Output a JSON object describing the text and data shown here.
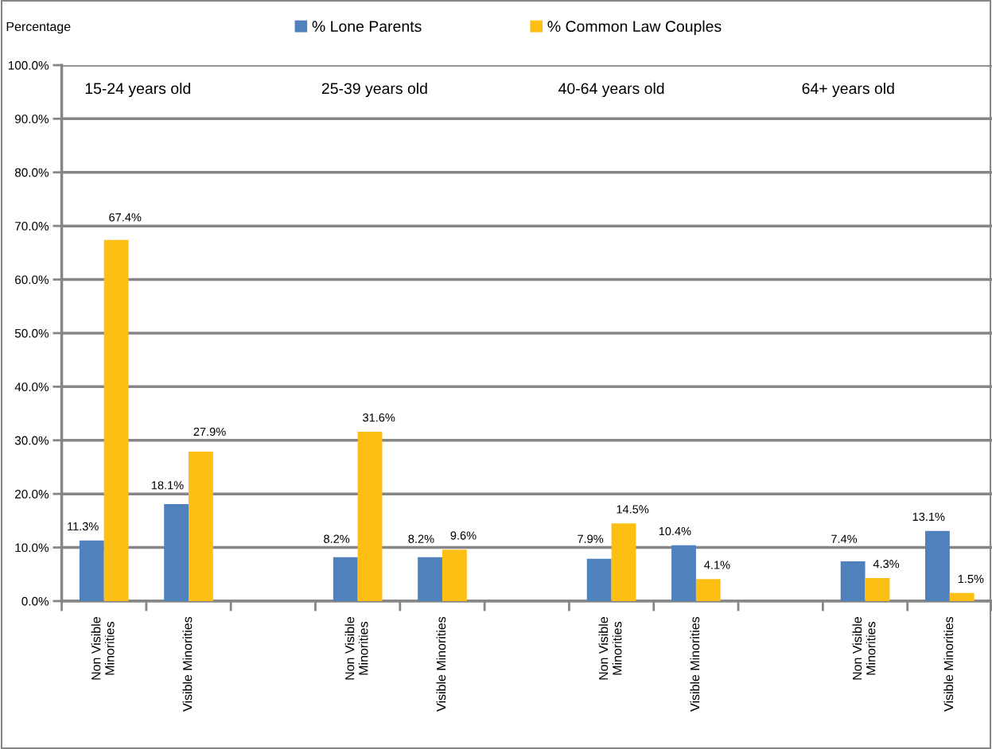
{
  "chart_data": {
    "type": "bar",
    "ylabel": "Percentage",
    "annotations": [
      "15-24 years old",
      "25-39 years old",
      "40-64 years old",
      "64+ years old"
    ],
    "categories": [
      "Non Visible\nMinorities",
      "Visible Minorities",
      null,
      "Non Visible\nMinorities",
      "Visible Minorities",
      null,
      "Non Visible\nMinorities",
      "Visible Minorities",
      null,
      "Non Visible\nMinorities",
      "Visible Minorities"
    ],
    "series": [
      {
        "name": "% Lone Parents",
        "color": "#4f81bd",
        "values": [
          11.3,
          18.1,
          null,
          8.2,
          8.2,
          null,
          7.9,
          10.4,
          null,
          7.4,
          13.1
        ],
        "value_labels": [
          "11.3%",
          "18.1%",
          null,
          "8.2%",
          "8.2%",
          null,
          "7.9%",
          "10.4%",
          null,
          "7.4%",
          "13.1%"
        ]
      },
      {
        "name": "% Common Law Couples",
        "color": "#fdbf13",
        "values": [
          67.4,
          27.9,
          null,
          31.6,
          9.6,
          null,
          14.5,
          4.1,
          null,
          4.3,
          1.5
        ],
        "value_labels": [
          "67.4%",
          "27.9%",
          null,
          "31.6%",
          "9.6%",
          null,
          "14.5%",
          "4.1%",
          null,
          "4.3%",
          "1.5%"
        ]
      }
    ],
    "ylim": [
      0,
      100
    ],
    "yticks": [
      {
        "value": 0,
        "label": "0.0%"
      },
      {
        "value": 10,
        "label": "10.0%"
      },
      {
        "value": 20,
        "label": "20.0%"
      },
      {
        "value": 30,
        "label": "30.0%"
      },
      {
        "value": 40,
        "label": "40.0%"
      },
      {
        "value": 50,
        "label": "50.0%"
      },
      {
        "value": 60,
        "label": "60.0%"
      },
      {
        "value": 70,
        "label": "70.0%"
      },
      {
        "value": 80,
        "label": "80.0%"
      },
      {
        "value": 90,
        "label": "90.0%"
      },
      {
        "value": 100,
        "label": "100.0%"
      }
    ],
    "grid": "y",
    "legend": "top"
  }
}
